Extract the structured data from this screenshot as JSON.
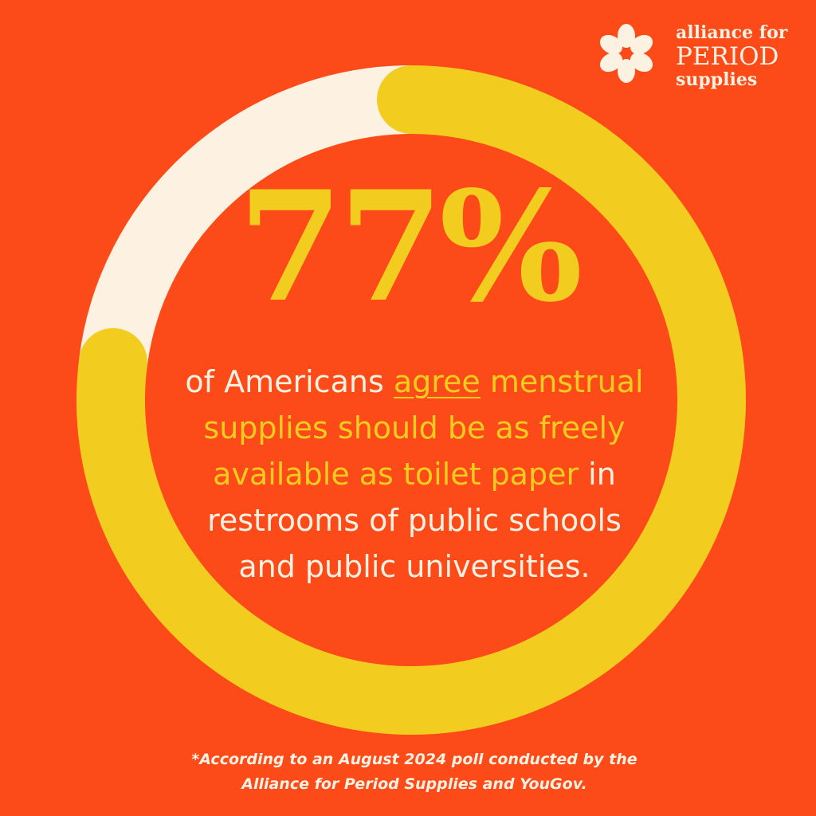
{
  "chart_data": {
    "type": "donut",
    "values": [
      77,
      23
    ],
    "value_labels": [
      "77%",
      null
    ],
    "colors": [
      "#f2cd1f",
      "#fdf2e2"
    ],
    "description": [
      {
        "text": "of Americans ",
        "color": "#fdf2e2"
      },
      {
        "text": "agree",
        "color": "#f2cd1f",
        "underline": true
      },
      {
        "text": " menstrual supplies should be as freely available as toilet paper",
        "color": "#f2cd1f"
      },
      {
        "text": " in restrooms of public schools and public universities.",
        "color": "#fdf2e2"
      }
    ],
    "footnote": [
      "*According to an August 2024 poll conducted by the",
      "Alliance for Period Supplies and YouGov."
    ]
  },
  "logo": {
    "line1": "alliance for",
    "line2": "PERIOD",
    "line3": "supplies"
  }
}
